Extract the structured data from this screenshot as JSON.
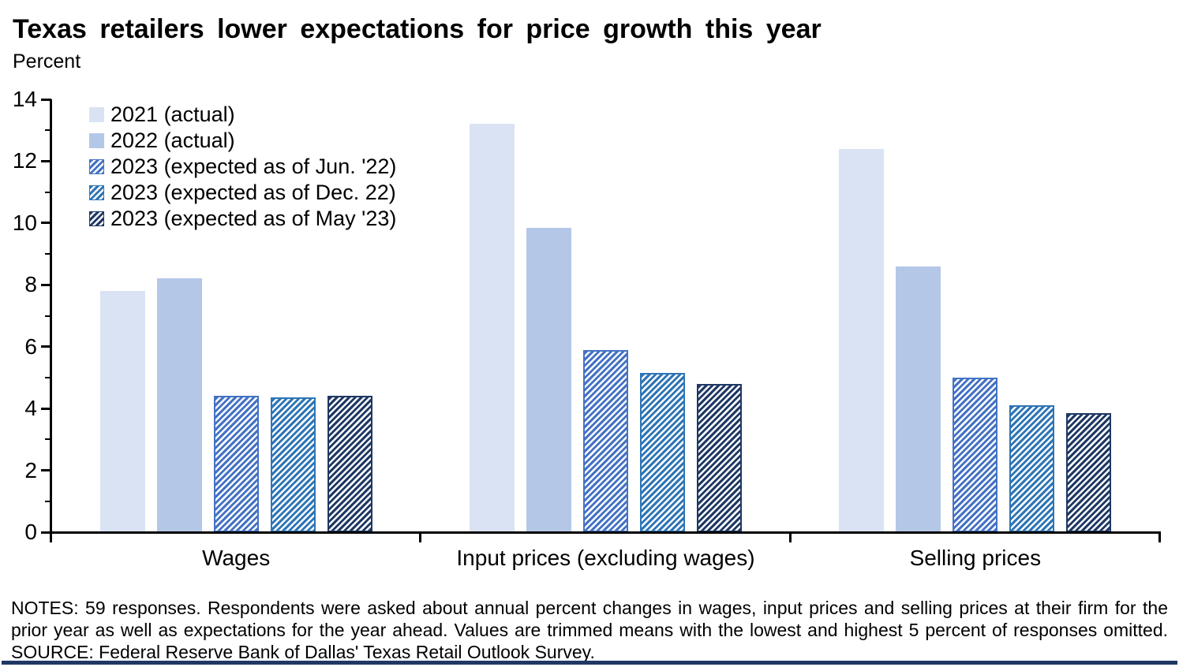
{
  "header": {
    "title": "Texas retailers lower expectations for price growth this year",
    "subtitle": "Percent"
  },
  "chart_data": {
    "type": "bar",
    "title": "Texas retailers lower expectations for price growth this year",
    "ylabel": "Percent",
    "xlabel": "",
    "ylim": [
      0,
      14
    ],
    "ytick_step": 2,
    "grid": false,
    "legend_position": "top-left",
    "categories": [
      "Wages",
      "Input prices (excluding wages)",
      "Selling prices"
    ],
    "series": [
      {
        "name": "2021 (actual)",
        "pattern": "solid",
        "color": "#dae3f3",
        "values": [
          7.8,
          13.2,
          12.4
        ]
      },
      {
        "name": "2022 (actual)",
        "pattern": "solid",
        "color": "#b4c7e7",
        "values": [
          8.2,
          9.85,
          8.6
        ]
      },
      {
        "name": "2023 (expected as of Jun. '22)",
        "pattern": "hatched",
        "color": "#4472c4",
        "values": [
          4.4,
          5.9,
          5.0
        ]
      },
      {
        "name": "2023 (expected as of Dec. 22)",
        "pattern": "hatched",
        "color": "#2e75b6",
        "values": [
          4.35,
          5.15,
          4.1
        ]
      },
      {
        "name": "2023 (expected as of May '23)",
        "pattern": "hatched",
        "color": "#1f3864",
        "values": [
          4.4,
          4.8,
          3.85
        ]
      }
    ]
  },
  "notes": {
    "notes_text": "NOTES: 59 responses. Respondents were asked about annual percent changes in wages, input prices and selling prices at their firm for the prior year as well as expectations for the year ahead. Values are trimmed means with the lowest and highest 5 percent of responses omitted.",
    "source_text": "SOURCE: Federal Reserve Bank of Dallas' Texas Retail Outlook Survey."
  },
  "colors": {
    "axis": "#000000",
    "bottom_rule": "#1f3864",
    "hatch_background": "#ffffff"
  }
}
